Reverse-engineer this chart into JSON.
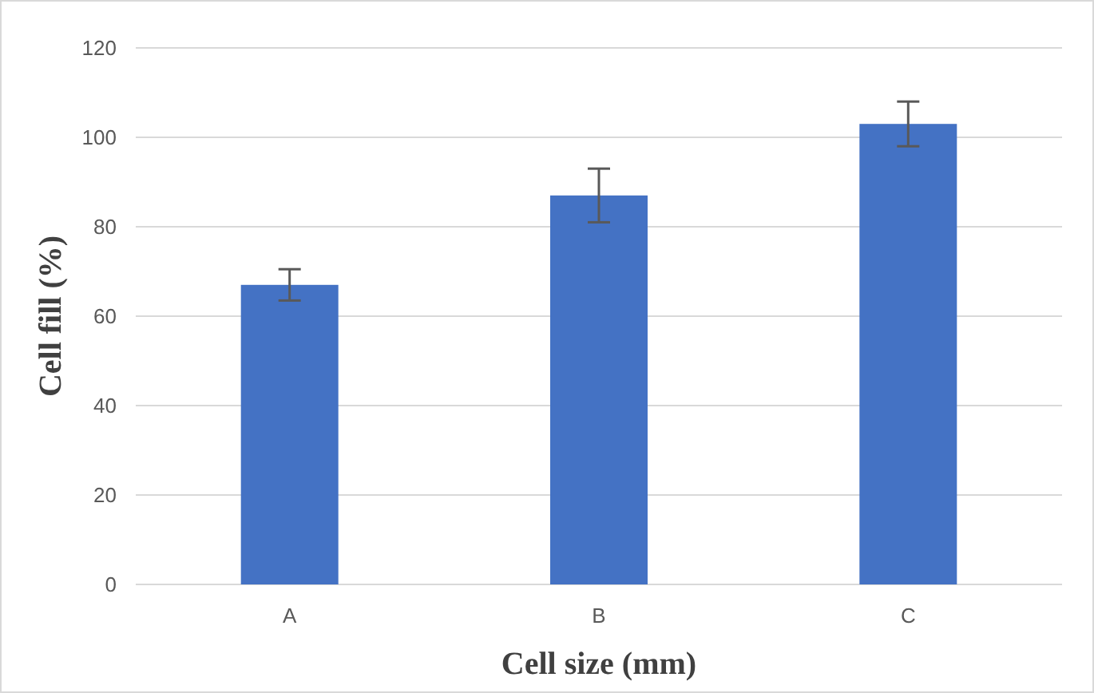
{
  "chart_data": {
    "type": "bar",
    "xlabel": "Cell size (mm)",
    "ylabel": "Cell fill (%)",
    "categories": [
      "A",
      "B",
      "C"
    ],
    "values": [
      67,
      87,
      103
    ],
    "errors": [
      3.5,
      6,
      5
    ],
    "color": "#4472c4",
    "ylim": [
      0,
      120
    ],
    "yticks": [
      0,
      20,
      40,
      60,
      80,
      100,
      120
    ],
    "grid": "y"
  }
}
